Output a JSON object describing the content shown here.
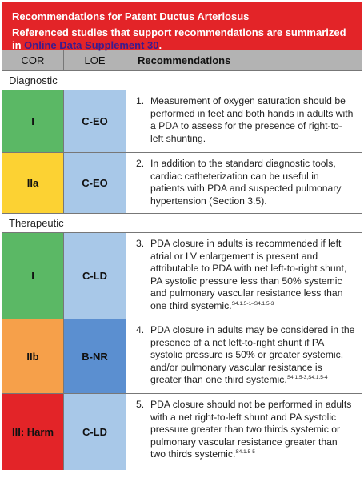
{
  "title": {
    "line1": "Recommendations for Patent Ductus Arteriosus",
    "line2": "Referenced studies that support recommendations are summarized",
    "line3_prefix": "in ",
    "line3_link": "Online Data Supplement 30",
    "line3_suffix": "."
  },
  "header": {
    "cor": "COR",
    "loe": "LOE",
    "recommendations": "Recommendations"
  },
  "sections": [
    {
      "label": "Diagnostic"
    },
    {
      "label": "Therapeutic"
    }
  ],
  "rows": [
    {
      "cor": "I",
      "loe": "C-EO",
      "cor_color": "#5bb865",
      "loe_color": "#a8c8e8",
      "num": "1.",
      "text": "Measurement of oxygen saturation should be performed in feet and both hands in adults with a PDA to assess for the presence of right-to-left shunting.",
      "refs": ""
    },
    {
      "cor": "IIa",
      "loe": "C-EO",
      "cor_color": "#fcd233",
      "loe_color": "#a8c8e8",
      "num": "2.",
      "text": "In addition to the standard diagnostic tools, cardiac catheterization can be useful in patients with PDA and suspected pulmonary hypertension (Section 3.5).",
      "refs": ""
    },
    {
      "cor": "I",
      "loe": "C-LD",
      "cor_color": "#5bb865",
      "loe_color": "#a8c8e8",
      "num": "3.",
      "text": "PDA closure in adults is recommended if left atrial or LV enlargement is present and attributable to PDA with net left-to-right shunt, PA systolic pressure less than 50% systemic and pulmonary vascular resistance less than one third systemic.",
      "refs": "S4.1.5-1–S4.1.5-3"
    },
    {
      "cor": "IIb",
      "loe": "B-NR",
      "cor_color": "#f6a04a",
      "loe_color": "#5b8fd0",
      "num": "4.",
      "text": "PDA closure in adults may be considered in the presence of a net left-to-right shunt if PA systolic pressure is 50% or greater systemic, and/or pulmonary vascular resistance is greater than one third systemic.",
      "refs": "S4.1.5-3,S4.1.5-4"
    },
    {
      "cor": "III: Harm",
      "loe": "C-LD",
      "cor_color": "#e32428",
      "loe_color": "#a8c8e8",
      "num": "5.",
      "text": "PDA closure should not be performed in adults with a net right-to-left shunt and PA systolic pressure greater than two thirds systemic or pulmonary vascular resistance greater than two thirds systemic.",
      "refs": "S4.1.5-5"
    }
  ]
}
